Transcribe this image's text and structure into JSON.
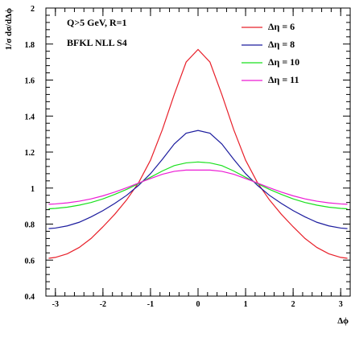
{
  "chart_data": {
    "type": "line",
    "title": "",
    "xlabel": "Δϕ",
    "ylabel": "1/σ dσ/dΔϕ",
    "xlim": [
      -3.2,
      3.2
    ],
    "ylim": [
      0.4,
      2.0
    ],
    "xticks": [
      -3,
      -2,
      -1,
      0,
      1,
      2,
      3
    ],
    "xtick_labels": [
      "-3",
      "-2",
      "-1",
      "0",
      "1",
      "2",
      "3"
    ],
    "yticks": [
      0.4,
      0.6,
      0.8,
      1.0,
      1.2,
      1.4,
      1.6,
      1.8,
      2.0
    ],
    "ytick_labels": [
      "0.4",
      "0.6",
      "0.8",
      "1",
      "1.2",
      "1.4",
      "1.6",
      "1.8",
      "2"
    ],
    "grid": false,
    "legend_position": "top-right",
    "annotations": [
      "Q>5 GeV, R=1",
      "BFKL NLL S4"
    ],
    "series": [
      {
        "name": "Δη = 6",
        "color": "#e8202a",
        "x": [
          -3.14159,
          -3.0,
          -2.75,
          -2.5,
          -2.25,
          -2.0,
          -1.75,
          -1.5,
          -1.25,
          -1.0,
          -0.75,
          -0.5,
          -0.25,
          0.0,
          0.25,
          0.5,
          0.75,
          1.0,
          1.25,
          1.5,
          1.75,
          2.0,
          2.25,
          2.5,
          2.75,
          3.0,
          3.14159
        ],
        "y": [
          0.61,
          0.615,
          0.635,
          0.67,
          0.72,
          0.785,
          0.855,
          0.935,
          1.03,
          1.155,
          1.325,
          1.52,
          1.7,
          1.77,
          1.7,
          1.52,
          1.325,
          1.155,
          1.03,
          0.935,
          0.855,
          0.785,
          0.72,
          0.67,
          0.635,
          0.615,
          0.61
        ]
      },
      {
        "name": "Δη = 8",
        "color": "#1c1c9e",
        "x": [
          -3.14159,
          -3.0,
          -2.75,
          -2.5,
          -2.25,
          -2.0,
          -1.75,
          -1.5,
          -1.25,
          -1.0,
          -0.75,
          -0.5,
          -0.25,
          0.0,
          0.25,
          0.5,
          0.75,
          1.0,
          1.25,
          1.5,
          1.75,
          2.0,
          2.25,
          2.5,
          2.75,
          3.0,
          3.14159
        ],
        "y": [
          0.775,
          0.778,
          0.79,
          0.81,
          0.84,
          0.875,
          0.915,
          0.96,
          1.015,
          1.08,
          1.16,
          1.245,
          1.305,
          1.32,
          1.305,
          1.245,
          1.16,
          1.08,
          1.015,
          0.96,
          0.915,
          0.875,
          0.84,
          0.81,
          0.79,
          0.778,
          0.775
        ]
      },
      {
        "name": "Δη = 10",
        "color": "#19e01d",
        "x": [
          -3.14159,
          -3.0,
          -2.75,
          -2.5,
          -2.25,
          -2.0,
          -1.75,
          -1.5,
          -1.25,
          -1.0,
          -0.75,
          -0.5,
          -0.25,
          0.0,
          0.25,
          0.5,
          0.75,
          1.0,
          1.25,
          1.5,
          1.75,
          2.0,
          2.25,
          2.5,
          2.75,
          3.0,
          3.14159
        ],
        "y": [
          0.885,
          0.887,
          0.894,
          0.905,
          0.92,
          0.94,
          0.965,
          0.993,
          1.025,
          1.06,
          1.095,
          1.125,
          1.14,
          1.145,
          1.14,
          1.125,
          1.095,
          1.06,
          1.025,
          0.993,
          0.965,
          0.94,
          0.92,
          0.905,
          0.894,
          0.887,
          0.885
        ]
      },
      {
        "name": "Δη = 11",
        "color": "#ec1ad4",
        "x": [
          -3.14159,
          -3.0,
          -2.75,
          -2.5,
          -2.25,
          -2.0,
          -1.75,
          -1.5,
          -1.25,
          -1.0,
          -0.75,
          -0.5,
          -0.25,
          0.0,
          0.25,
          0.5,
          0.75,
          1.0,
          1.25,
          1.5,
          1.75,
          2.0,
          2.25,
          2.5,
          2.75,
          3.0,
          3.14159
        ],
        "y": [
          0.91,
          0.912,
          0.918,
          0.927,
          0.94,
          0.957,
          0.978,
          1.002,
          1.028,
          1.053,
          1.077,
          1.093,
          1.1,
          1.1,
          1.1,
          1.093,
          1.077,
          1.053,
          1.028,
          1.002,
          0.978,
          0.957,
          0.94,
          0.927,
          0.918,
          0.912,
          0.91
        ]
      }
    ]
  }
}
